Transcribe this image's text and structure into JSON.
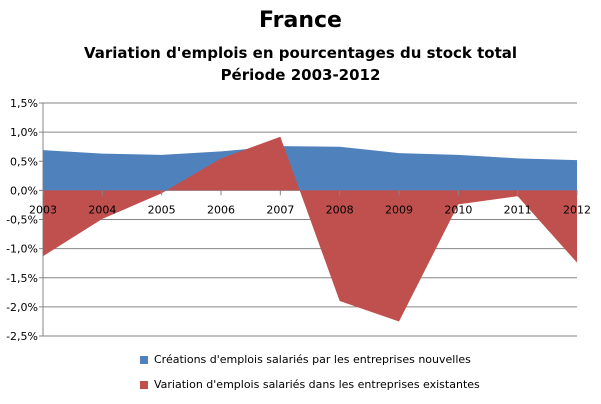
{
  "chart_data": {
    "type": "area",
    "title": "France",
    "subtitle": [
      "Variation d'emplois en pourcentages du stock total",
      "Période 2003-2012"
    ],
    "xlabel": "",
    "ylabel": "",
    "categories": [
      "2003",
      "2004",
      "2005",
      "2006",
      "2007",
      "2008",
      "2009",
      "2010",
      "2011",
      "2012"
    ],
    "ylim": [
      -2.5,
      1.5
    ],
    "yticks": [
      "1,5%",
      "1,0%",
      "0,5%",
      "0,0%",
      "-0,5%",
      "-1,0%",
      "-1,5%",
      "-2,0%",
      "-2,5%"
    ],
    "grid": true,
    "legend": "bottom",
    "series": [
      {
        "name": "Créations d'emplois salariés par les entreprises nouvelles",
        "color": "#4f81bd",
        "values": [
          0.69,
          0.63,
          0.61,
          0.67,
          0.76,
          0.75,
          0.64,
          0.61,
          0.55,
          0.52
        ]
      },
      {
        "name": "Variation d'emplois salariés dans les entreprises existantes",
        "color": "#c0504d",
        "values": [
          -1.13,
          -0.49,
          -0.05,
          0.55,
          0.92,
          -1.9,
          -2.25,
          -0.24,
          -0.1,
          -1.24
        ]
      }
    ]
  }
}
